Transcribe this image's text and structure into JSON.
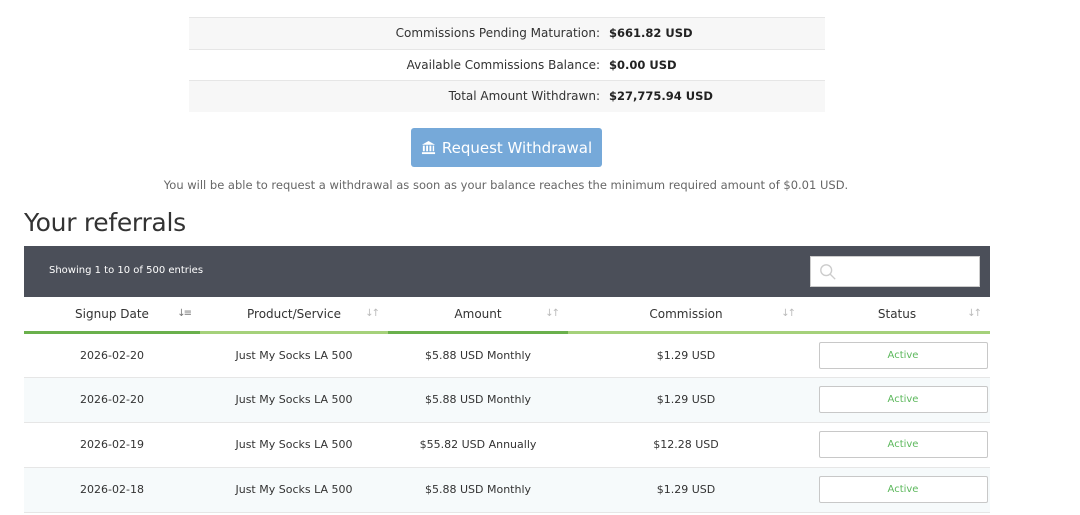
{
  "summary": [
    {
      "label": "Commissions Pending Maturation:",
      "value": "$661.82 USD"
    },
    {
      "label": "Available Commissions Balance:",
      "value": "$0.00 USD"
    },
    {
      "label": "Total Amount Withdrawn:",
      "value": "$27,775.94 USD"
    }
  ],
  "withdraw": {
    "label": "Request Withdrawal",
    "icon": "bank-icon"
  },
  "notice": "You will be able to request a withdrawal as soon as your balance reaches the minimum required amount of $0.01 USD.",
  "referrals": {
    "title": "Your referrals",
    "entries_info": "Showing 1 to 10 of 500 entries",
    "search_placeholder": "",
    "columns": [
      "Signup Date",
      "Product/Service",
      "Amount",
      "Commission",
      "Status"
    ],
    "rows": [
      {
        "date": "2026-02-20",
        "product": "Just My Socks LA 500",
        "amount": "$5.88 USD Monthly",
        "commission": "$1.29 USD",
        "status": "Active"
      },
      {
        "date": "2026-02-20",
        "product": "Just My Socks LA 500",
        "amount": "$5.88 USD Monthly",
        "commission": "$1.29 USD",
        "status": "Active"
      },
      {
        "date": "2026-02-19",
        "product": "Just My Socks LA 500",
        "amount": "$55.82 USD Annually",
        "commission": "$12.28 USD",
        "status": "Active"
      },
      {
        "date": "2026-02-18",
        "product": "Just My Socks LA 500",
        "amount": "$5.88 USD Monthly",
        "commission": "$1.29 USD",
        "status": "Active"
      }
    ]
  },
  "colors": {
    "button": "#76a9d9",
    "header_bg": "#4b4f59",
    "status_active": "#5cb85c",
    "accent_green": "#8bc34a"
  }
}
